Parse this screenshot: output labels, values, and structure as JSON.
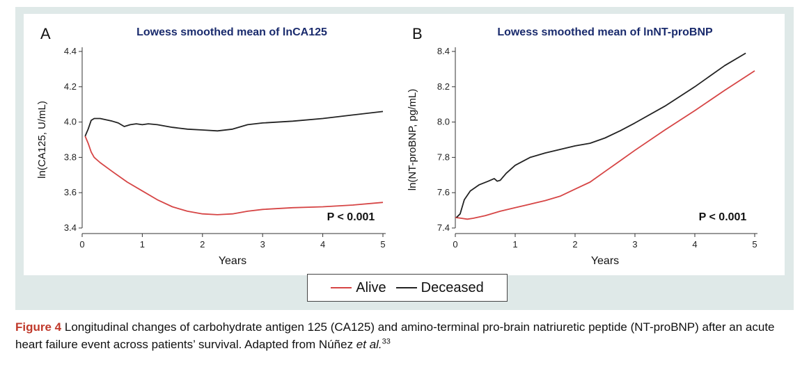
{
  "colors": {
    "alive": "#d64545",
    "deceased": "#222222",
    "panel_bg": "#dfe9e8",
    "caption_accent": "#c0392b"
  },
  "legend": {
    "alive_label": "Alive",
    "deceased_label": "Deceased"
  },
  "caption": {
    "figure_label": "Figure 4",
    "text": "Longitudinal changes of carbohydrate antigen 125 (CA125) and amino-terminal pro-brain natriuretic peptide (NT-proBNP) after an acute heart failure event across patients’ survival. Adapted from Núñez ",
    "et_al": "et al.",
    "ref": "33"
  },
  "chart_data": [
    {
      "type": "line",
      "panel_label": "A",
      "title": "Lowess smoothed mean of lnCA125",
      "xlabel": "Years",
      "ylabel": "ln(CA125, U/mL)",
      "xlim": [
        0,
        5
      ],
      "ylim": [
        3.4,
        4.4
      ],
      "xticks": [
        0,
        1,
        2,
        3,
        4,
        5
      ],
      "xtick_labels": [
        "0",
        "1",
        "2",
        "3",
        "4",
        "5"
      ],
      "yticks": [
        3.4,
        3.6,
        3.8,
        4.0,
        4.2,
        4.4
      ],
      "ytick_labels": [
        "3.4",
        "3.6",
        "3.8",
        "4.0",
        "4.2",
        "4.4"
      ],
      "annotation": "P < 0.001",
      "series": [
        {
          "name": "Alive",
          "x": [
            0.05,
            0.1,
            0.15,
            0.2,
            0.3,
            0.5,
            0.75,
            1.0,
            1.25,
            1.5,
            1.75,
            2.0,
            2.25,
            2.5,
            2.75,
            3.0,
            3.5,
            4.0,
            4.5,
            5.0
          ],
          "y": [
            3.92,
            3.88,
            3.83,
            3.8,
            3.77,
            3.72,
            3.66,
            3.61,
            3.56,
            3.52,
            3.495,
            3.48,
            3.475,
            3.48,
            3.495,
            3.505,
            3.515,
            3.52,
            3.53,
            3.545
          ]
        },
        {
          "name": "Deceased",
          "x": [
            0.05,
            0.1,
            0.15,
            0.2,
            0.3,
            0.5,
            0.6,
            0.7,
            0.8,
            0.9,
            1.0,
            1.1,
            1.25,
            1.5,
            1.75,
            2.0,
            2.25,
            2.5,
            2.75,
            3.0,
            3.5,
            4.0,
            4.5,
            5.0
          ],
          "y": [
            3.92,
            3.96,
            4.01,
            4.02,
            4.02,
            4.005,
            3.995,
            3.975,
            3.985,
            3.99,
            3.985,
            3.99,
            3.985,
            3.97,
            3.96,
            3.955,
            3.95,
            3.96,
            3.985,
            3.995,
            4.005,
            4.02,
            4.04,
            4.06
          ]
        }
      ]
    },
    {
      "type": "line",
      "panel_label": "B",
      "title": "Lowess smoothed mean of lnNT-proBNP",
      "xlabel": "Years",
      "ylabel": "ln(NT-proBNP, pg/mL)",
      "xlim": [
        0,
        5
      ],
      "ylim": [
        7.4,
        8.4
      ],
      "xticks": [
        0,
        1,
        2,
        3,
        4,
        5
      ],
      "xtick_labels": [
        "0",
        "1",
        "2",
        "3",
        "4",
        "5"
      ],
      "yticks": [
        7.4,
        7.6,
        7.8,
        8.0,
        8.2,
        8.4
      ],
      "ytick_labels": [
        "7.4",
        "7.6",
        "7.8",
        "8.0",
        "8.2",
        "8.4"
      ],
      "annotation": "P < 0.001",
      "series": [
        {
          "name": "Alive",
          "x": [
            0.0,
            0.1,
            0.2,
            0.3,
            0.5,
            0.75,
            1.0,
            1.25,
            1.5,
            1.75,
            2.0,
            2.25,
            2.5,
            2.75,
            3.0,
            3.5,
            4.0,
            4.5,
            5.0
          ],
          "y": [
            7.46,
            7.455,
            7.45,
            7.455,
            7.47,
            7.495,
            7.515,
            7.535,
            7.555,
            7.58,
            7.62,
            7.66,
            7.72,
            7.78,
            7.84,
            7.955,
            8.065,
            8.18,
            8.29
          ]
        },
        {
          "name": "Deceased",
          "x": [
            0.02,
            0.08,
            0.15,
            0.25,
            0.4,
            0.55,
            0.65,
            0.7,
            0.75,
            0.85,
            1.0,
            1.25,
            1.5,
            1.75,
            2.0,
            2.25,
            2.5,
            2.75,
            3.0,
            3.5,
            4.0,
            4.5,
            4.85
          ],
          "y": [
            7.46,
            7.48,
            7.56,
            7.61,
            7.645,
            7.665,
            7.68,
            7.665,
            7.67,
            7.71,
            7.755,
            7.8,
            7.825,
            7.845,
            7.865,
            7.88,
            7.91,
            7.95,
            7.995,
            8.09,
            8.2,
            8.32,
            8.39
          ]
        }
      ]
    }
  ]
}
